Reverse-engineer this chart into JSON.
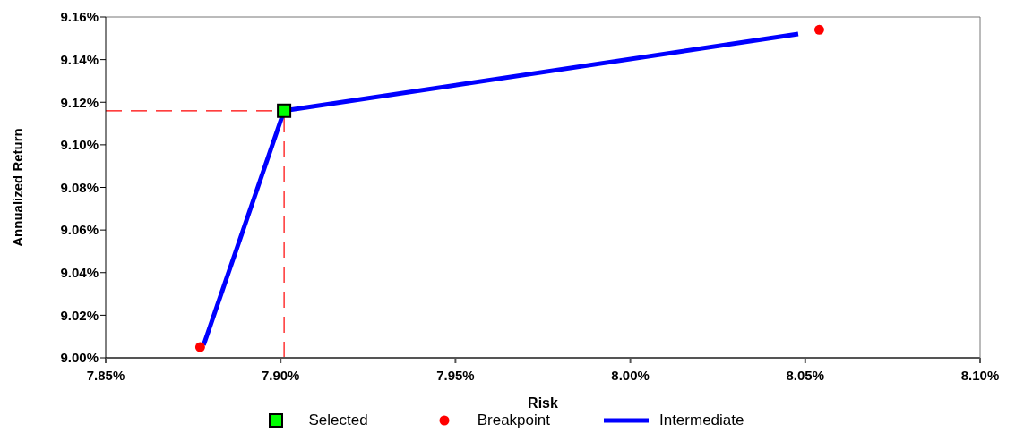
{
  "chart_data": {
    "type": "scatter",
    "xlabel": "Risk",
    "ylabel": "Annualized Return",
    "xlim": [
      7.85,
      8.1
    ],
    "xticks": [
      {
        "value": 7.85,
        "label": "7.85%"
      },
      {
        "value": 7.9,
        "label": "7.90%"
      },
      {
        "value": 7.95,
        "label": "7.95%"
      },
      {
        "value": 8.0,
        "label": "8.00%"
      },
      {
        "value": 8.05,
        "label": "8.05%"
      },
      {
        "value": 8.1,
        "label": "8.10%"
      }
    ],
    "ylim": [
      9.0,
      9.16
    ],
    "yticks": [
      {
        "value": 9.0,
        "label": "9.00%"
      },
      {
        "value": 9.02,
        "label": "9.02%"
      },
      {
        "value": 9.04,
        "label": "9.04%"
      },
      {
        "value": 9.06,
        "label": "9.06%"
      },
      {
        "value": 9.08,
        "label": "9.08%"
      },
      {
        "value": 9.1,
        "label": "9.10%"
      },
      {
        "value": 9.12,
        "label": "9.12%"
      },
      {
        "value": 9.14,
        "label": "9.14%"
      },
      {
        "value": 9.16,
        "label": "9.16%"
      }
    ],
    "legend": "bottom",
    "series": [
      {
        "name": "Selected",
        "marker": "square",
        "color": "#00ff00",
        "x": [
          7.901
        ],
        "values": [
          9.116
        ]
      },
      {
        "name": "Breakpoint",
        "marker": "circle",
        "color": "#ff0000",
        "x": [
          7.877,
          8.054
        ],
        "values": [
          9.005,
          9.154
        ]
      },
      {
        "name": "Intermediate",
        "type": "line",
        "marker": "none",
        "color": "#0000ff",
        "x": [
          7.878,
          7.901,
          8.048
        ],
        "values": [
          9.006,
          9.116,
          9.152
        ]
      }
    ],
    "ref_lines": [
      {
        "axis": "y",
        "value": 9.116,
        "color": "#ff0000",
        "line_style": "dashed"
      },
      {
        "axis": "x",
        "value": 7.901,
        "color": "#ff0000",
        "line_style": "dashed"
      }
    ]
  }
}
